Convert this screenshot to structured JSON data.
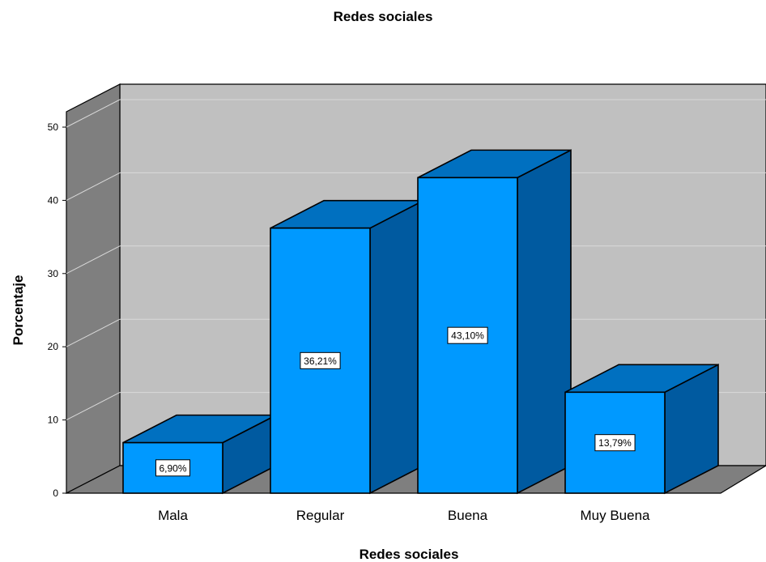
{
  "chart_data": {
    "type": "bar",
    "title": "Redes sociales",
    "xlabel": "Redes sociales",
    "ylabel": "Porcentaje",
    "categories": [
      "Mala",
      "Regular",
      "Buena",
      "Muy Buena"
    ],
    "values": [
      6.9,
      36.21,
      43.1,
      13.79
    ],
    "data_labels": [
      "6,90%",
      "36,21%",
      "43,10%",
      "13,79%"
    ],
    "yticks": [
      "0",
      "10",
      "20",
      "30",
      "40",
      "50"
    ],
    "ylim": [
      0,
      50
    ],
    "grid": true,
    "style": "3d",
    "colors": {
      "bar_front": "#0099ff",
      "bar_top": "#0070c0",
      "bar_side": "#005aa0",
      "back_wall": "#c0c0c0",
      "side_wall": "#7f7f7f",
      "floor": "#7f7f7f",
      "gridline": "#d9d9d9"
    }
  }
}
